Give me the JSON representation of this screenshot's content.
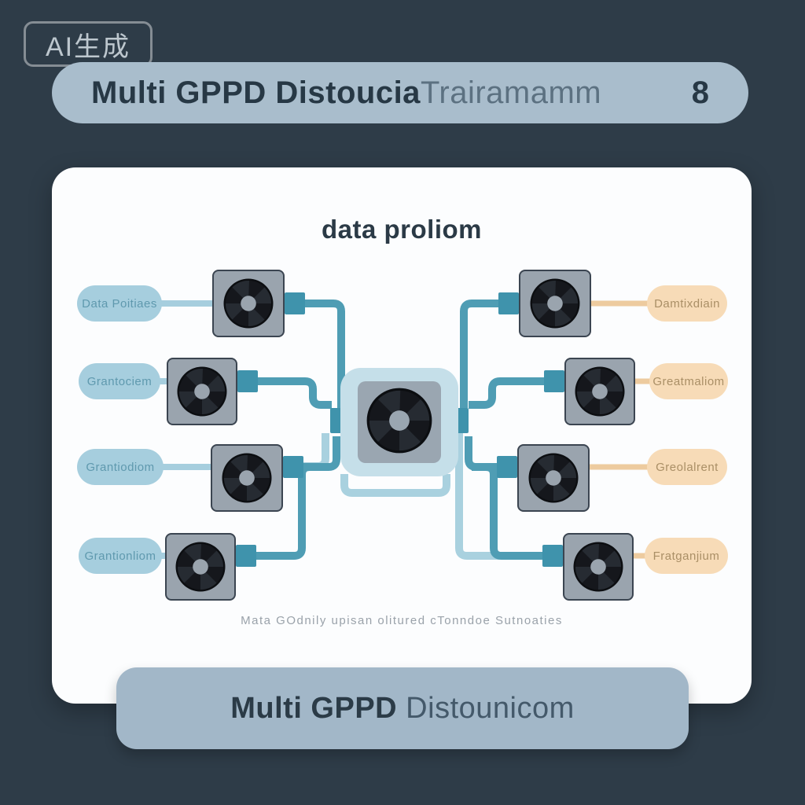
{
  "theme": {
    "bg": "#2e3c48",
    "header_bg": "#a9bdcc",
    "bar_bg": "#a2b7c8",
    "left_pill": "#a6cede",
    "right_pill": "#f7dbb7",
    "wire_teal": "#4f9db4",
    "wire_pale": "#a9d1df",
    "wire_peach": "#edcb9f",
    "stub_teal": "#3f93ac"
  },
  "watermark": {
    "label": "AI生成"
  },
  "header": {
    "title_bold": "Multi GPPD Distoucia",
    "title_light": "Trairamamm",
    "number": "8"
  },
  "card": {
    "title": "data proliom",
    "caption": "Mata GOdnily upisan olitured cTonndoe Sutnoaties"
  },
  "diagram": {
    "center_icon": "fan-icon",
    "left_labels": [
      "Data Poitiaes",
      "Grantociem",
      "Grantiodiom",
      "Grantionliom"
    ],
    "right_labels": [
      "Damtixdiain",
      "Greatmaliom",
      "Greolalrent",
      "Fratganjium"
    ]
  },
  "footer": {
    "title_bold": "Multi GPPD",
    "title_light": "Distounicom"
  }
}
